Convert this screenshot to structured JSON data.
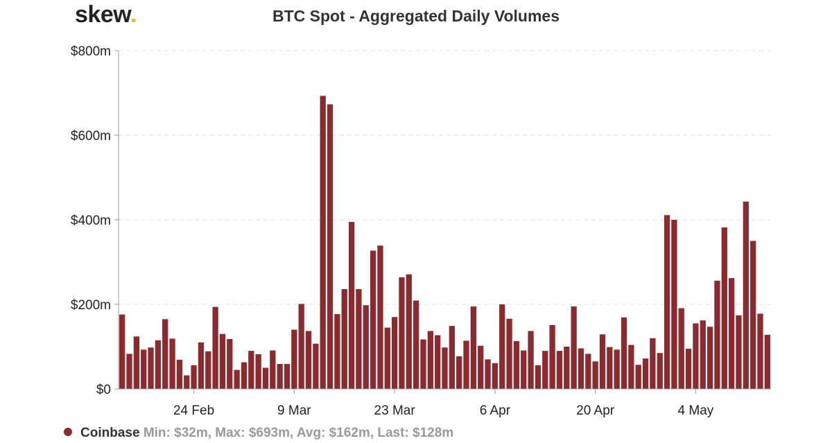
{
  "brand": {
    "name": "skew",
    "dot": "."
  },
  "chart_data": {
    "type": "bar",
    "title": "BTC Spot - Aggregated Daily Volumes",
    "xlabel": "",
    "ylabel": "",
    "ylim": [
      0,
      800
    ],
    "yticks": [
      0,
      200,
      400,
      600,
      800
    ],
    "ytick_labels": [
      "$0",
      "$200m",
      "$400m",
      "$600m",
      "$800m"
    ],
    "x_start_date": "2020-02-14",
    "xticks": [
      {
        "index": 10,
        "label": "24 Feb"
      },
      {
        "index": 24,
        "label": "9 Mar"
      },
      {
        "index": 38,
        "label": "23 Mar"
      },
      {
        "index": 52,
        "label": "6 Apr"
      },
      {
        "index": 66,
        "label": "20 Apr"
      },
      {
        "index": 80,
        "label": "4 May"
      }
    ],
    "grid": true,
    "legend_position": "bottom-left",
    "series": [
      {
        "name": "Coinbase",
        "color": "#8c2b2f",
        "values": [
          176,
          83,
          124,
          93,
          98,
          115,
          165,
          119,
          69,
          32,
          56,
          110,
          89,
          194,
          130,
          118,
          45,
          63,
          90,
          82,
          50,
          91,
          59,
          59,
          140,
          201,
          137,
          107,
          693,
          673,
          177,
          236,
          395,
          236,
          198,
          327,
          339,
          145,
          170,
          264,
          271,
          209,
          117,
          137,
          127,
          98,
          149,
          77,
          114,
          195,
          102,
          70,
          61,
          200,
          166,
          113,
          91,
          137,
          56,
          90,
          151,
          90,
          100,
          195,
          96,
          83,
          65,
          129,
          99,
          93,
          169,
          104,
          57,
          72,
          120,
          85,
          411,
          400,
          191,
          95,
          155,
          162,
          147,
          256,
          382,
          262,
          174,
          443,
          350,
          178,
          128
        ]
      }
    ],
    "legend_text": {
      "name": "Coinbase",
      "stats": "Min: $32m, Max: $693m, Avg: $162m, Last: $128m"
    }
  }
}
